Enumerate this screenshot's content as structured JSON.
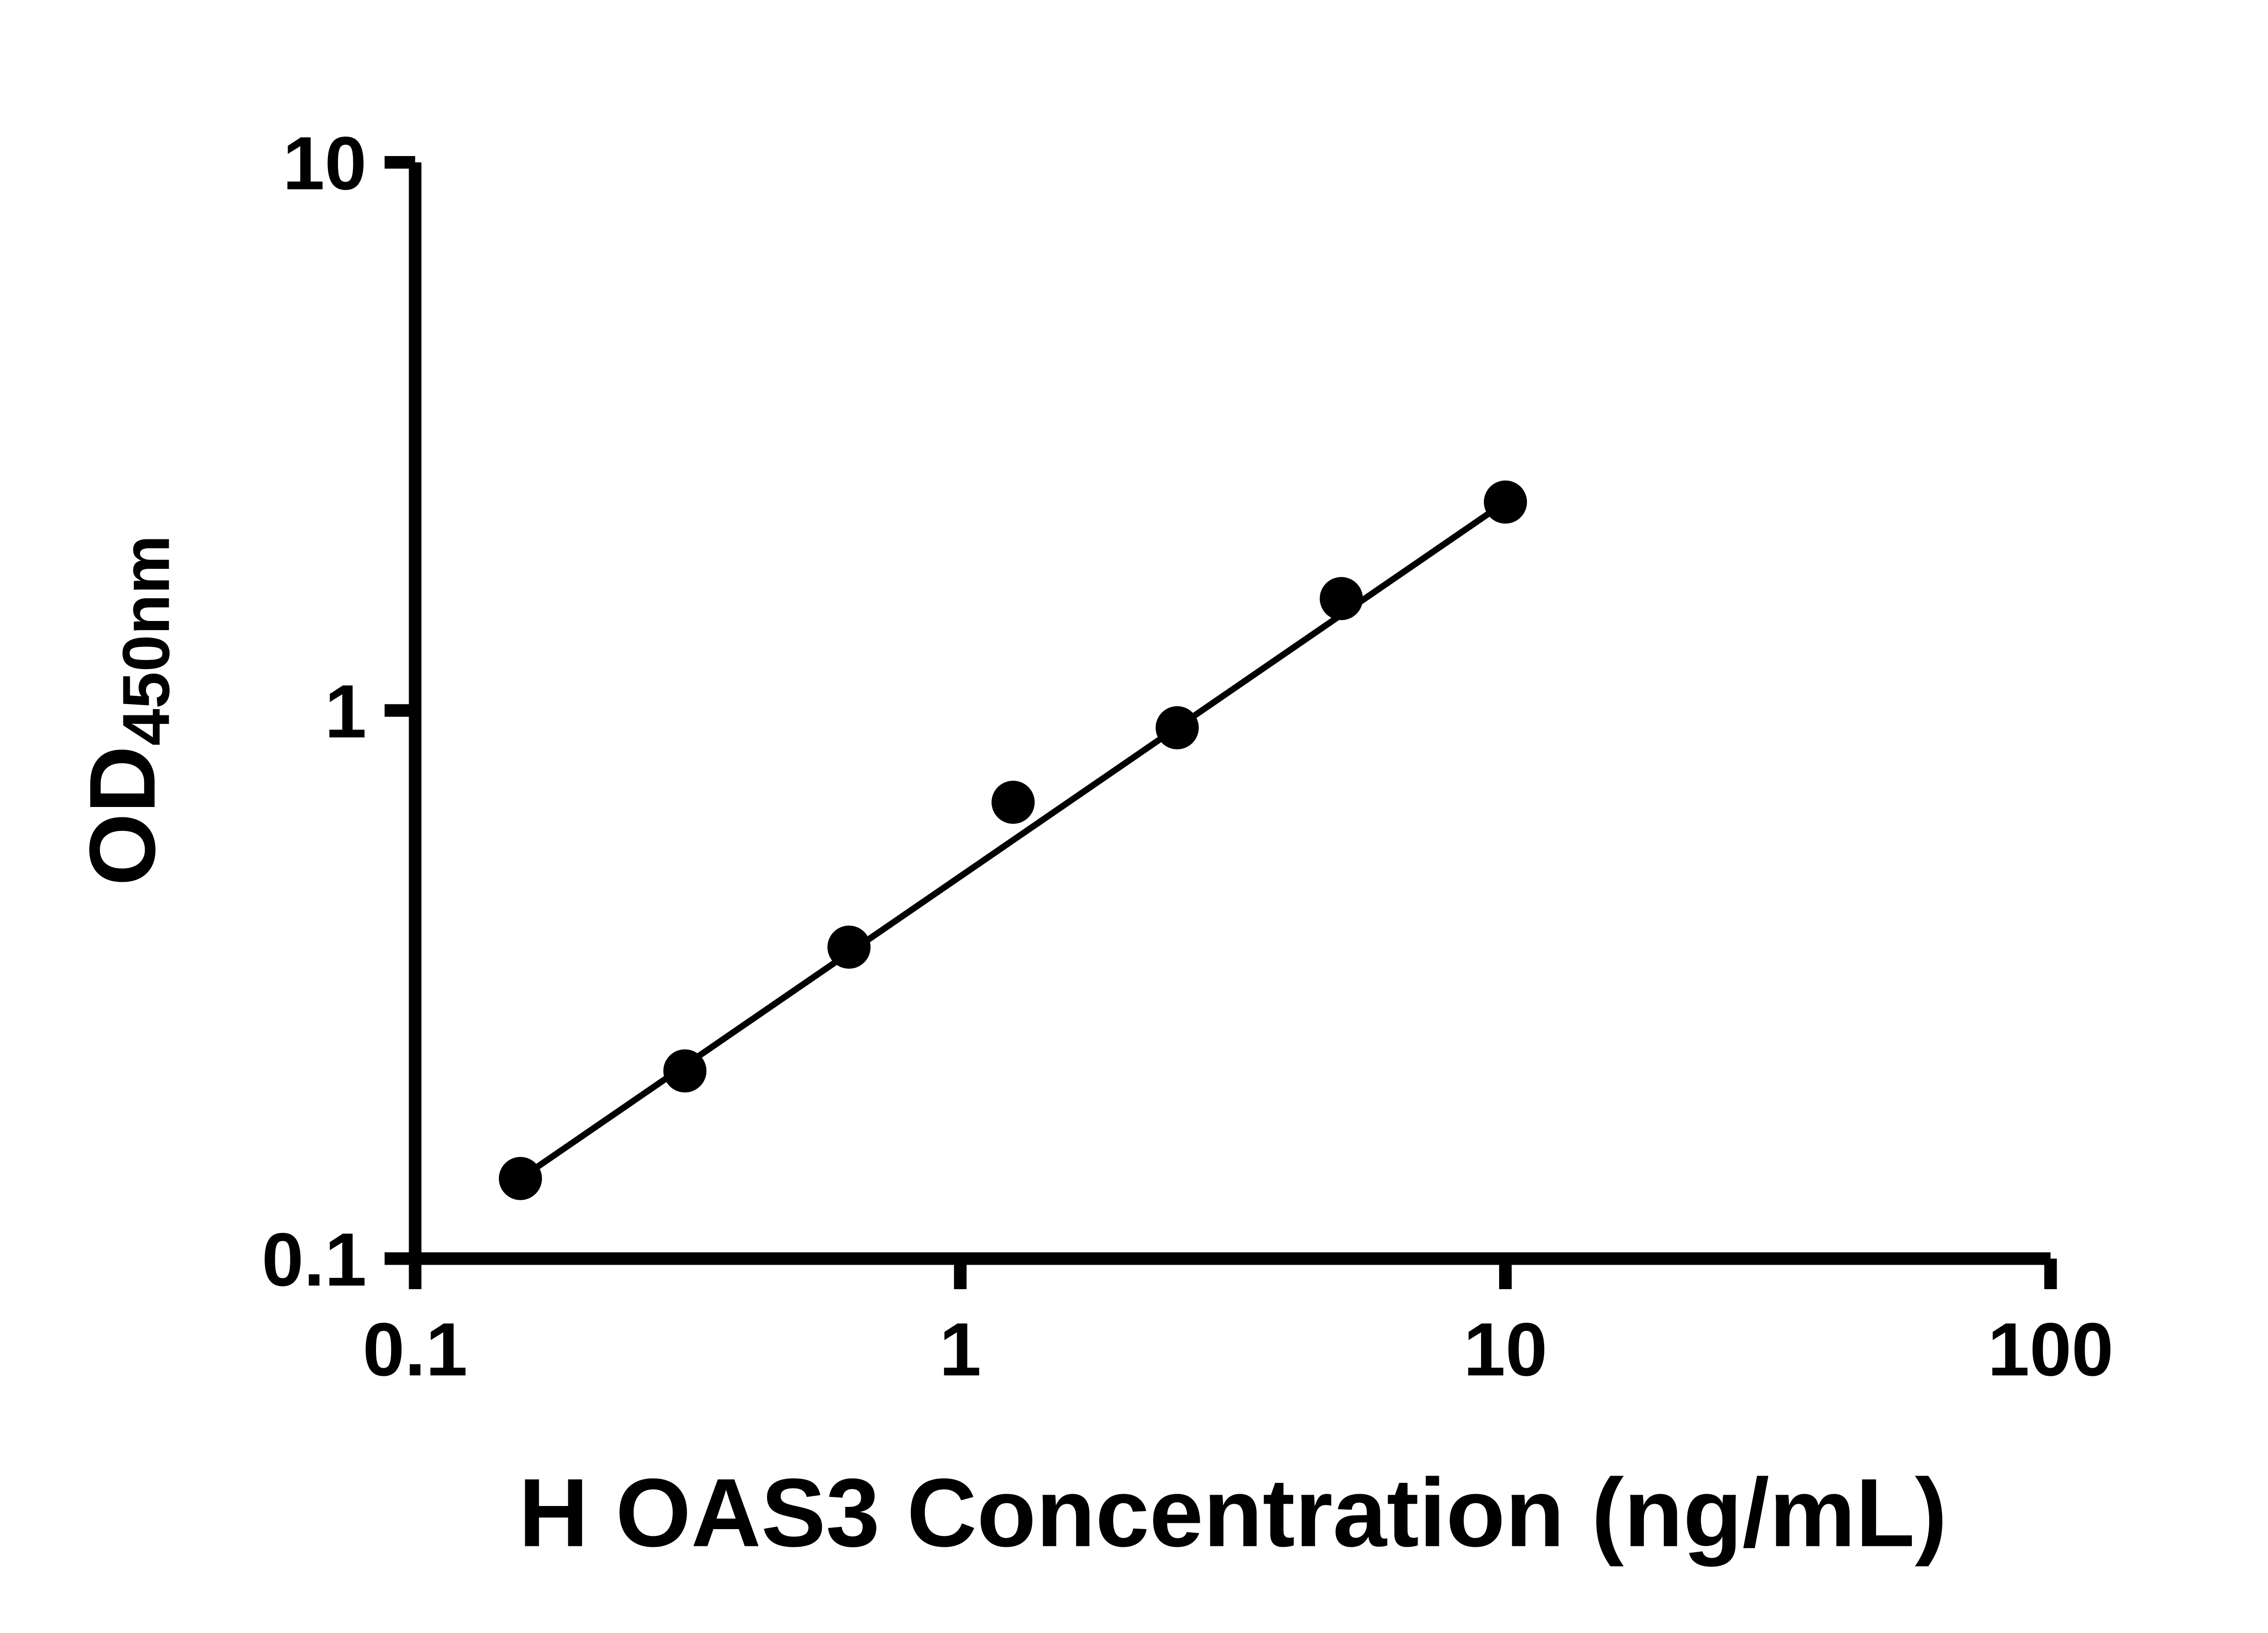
{
  "chart_data": {
    "type": "scatter",
    "title": "",
    "xlabel": "H OAS3 Concentration (ng/mL)",
    "ylabel_main": "OD",
    "ylabel_sub": "450nm",
    "x_scale": "log",
    "y_scale": "log",
    "xlim": [
      0.1,
      100
    ],
    "ylim": [
      0.1,
      10
    ],
    "x_ticks": [
      0.1,
      1,
      10,
      100
    ],
    "x_tick_labels": [
      "0.1",
      "1",
      "10",
      "100"
    ],
    "y_ticks": [
      0.1,
      1,
      10
    ],
    "y_tick_labels": [
      "0.1",
      "1",
      "10"
    ],
    "grid": false,
    "legend": null,
    "marker_color": "#000000",
    "marker_radius": 12,
    "line_color": "#000000",
    "points": [
      {
        "x": 0.156,
        "y": 0.14
      },
      {
        "x": 0.3125,
        "y": 0.22
      },
      {
        "x": 0.625,
        "y": 0.37
      },
      {
        "x": 1.25,
        "y": 0.68
      },
      {
        "x": 2.5,
        "y": 0.93
      },
      {
        "x": 5,
        "y": 1.6
      },
      {
        "x": 10,
        "y": 2.4
      }
    ],
    "trend_line": {
      "from": {
        "x": 0.156,
        "y": 0.14
      },
      "to": {
        "x": 10,
        "y": 2.4
      }
    }
  }
}
